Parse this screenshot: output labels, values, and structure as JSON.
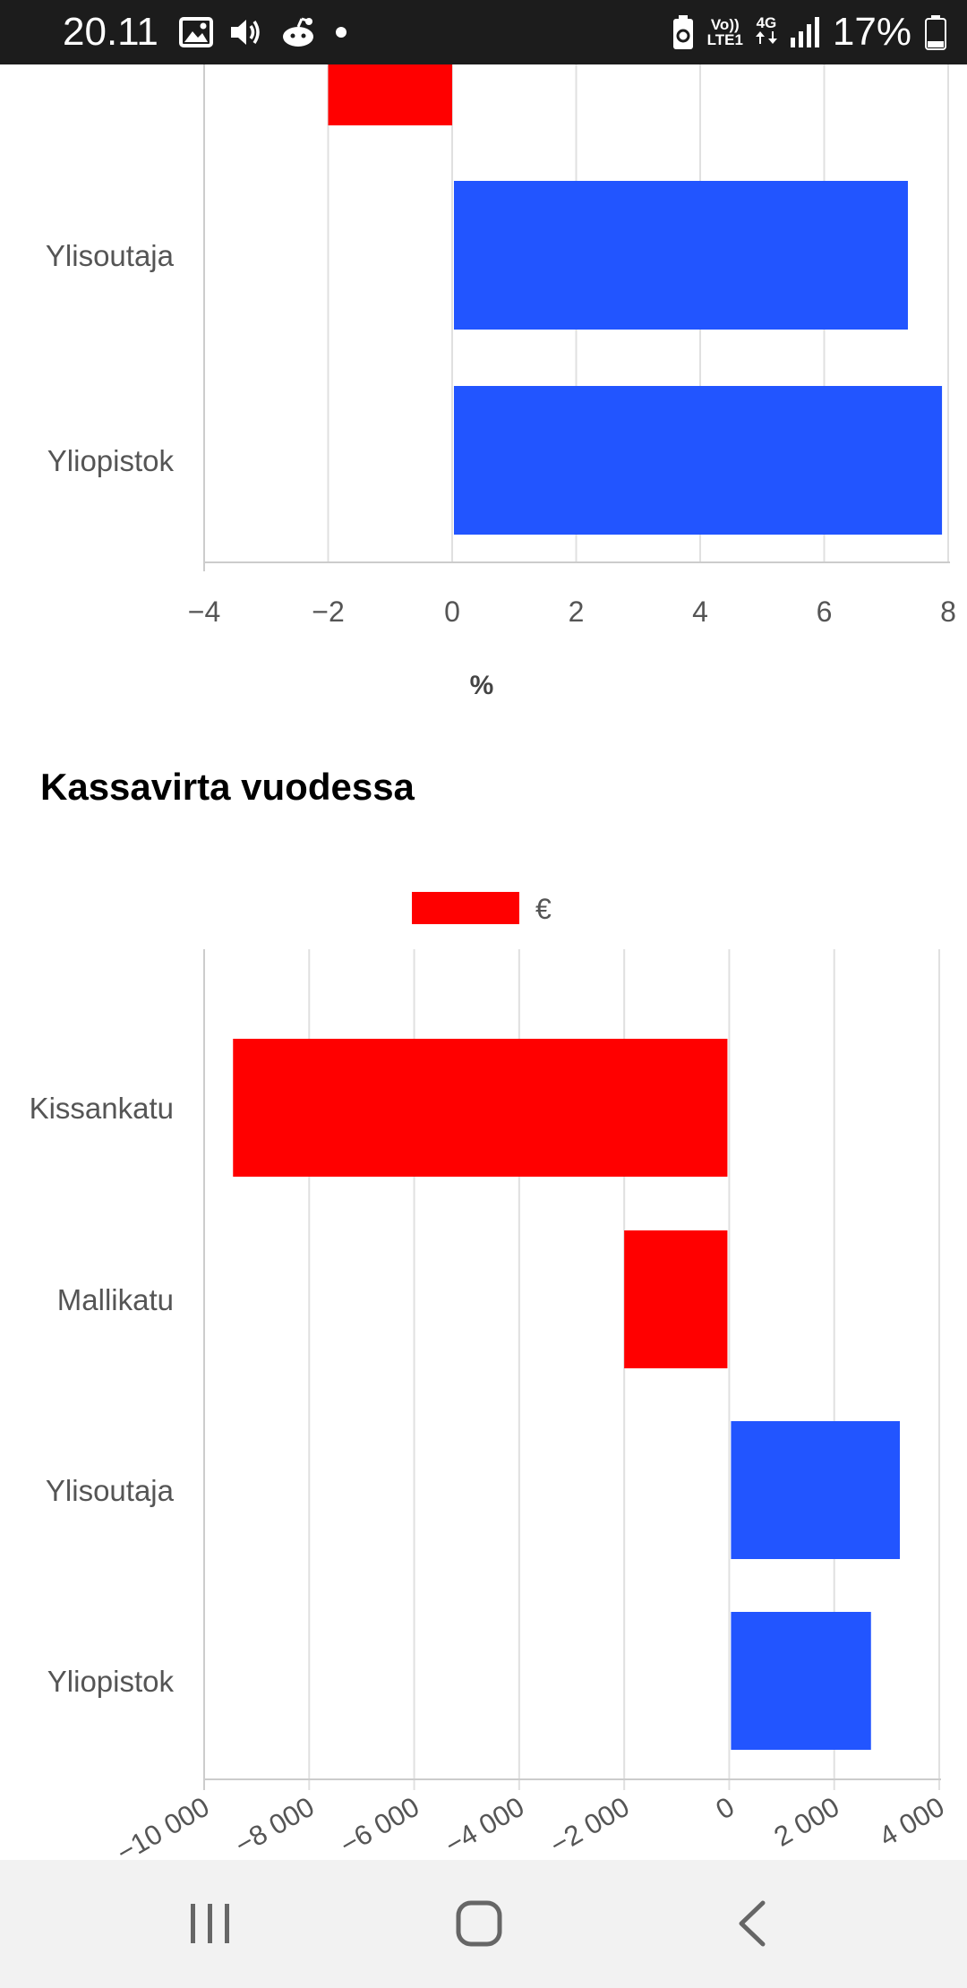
{
  "status_bar": {
    "time": "20.11",
    "battery_percent": "17%",
    "network_top": "Vo))",
    "network_bottom": "LTE1",
    "network_type": "4G",
    "icons": [
      "image-icon",
      "volume-icon",
      "reddit-icon",
      "notification-dot-icon",
      "battery-saver-icon",
      "signal-icon",
      "battery-icon"
    ]
  },
  "colors": {
    "negative": "#ff0000",
    "positive": "#2255ff",
    "grid": "#e0e0e0",
    "axis": "#cccccc",
    "tick_text": "#555555"
  },
  "chart_data": [
    {
      "type": "bar",
      "orientation": "horizontal",
      "title": "",
      "xlabel": "%",
      "ylabel": "",
      "xlim": [
        -4,
        8
      ],
      "x_ticks": [
        "−4",
        "−2",
        "0",
        "2",
        "4",
        "6",
        "8"
      ],
      "x_tick_values": [
        -4,
        -2,
        0,
        2,
        4,
        6,
        8
      ],
      "categories": [
        "Ylisoutaja",
        "Yliopistok"
      ],
      "values": [
        7.35,
        7.9
      ],
      "partial_bar_value": -2.0,
      "grid": true,
      "legend": "none"
    },
    {
      "type": "bar",
      "orientation": "horizontal",
      "title": "Kassavirta vuodessa",
      "xlabel": "",
      "ylabel": "",
      "xlim": [
        -10000,
        4000
      ],
      "x_ticks": [
        "−10 000",
        "−8 000",
        "−6 000",
        "−4 000",
        "−2 000",
        "0",
        "2 000",
        "4 000"
      ],
      "x_tick_values": [
        -10000,
        -8000,
        -6000,
        -4000,
        -2000,
        0,
        2000,
        4000
      ],
      "categories": [
        "Kissankatu",
        "Mallikatu",
        "Ylisoutaja",
        "Yliopistok"
      ],
      "series": [
        {
          "name": "€",
          "values": [
            -9450,
            -2000,
            3250,
            2700
          ]
        }
      ],
      "grid": true,
      "legend": "top-center"
    }
  ]
}
